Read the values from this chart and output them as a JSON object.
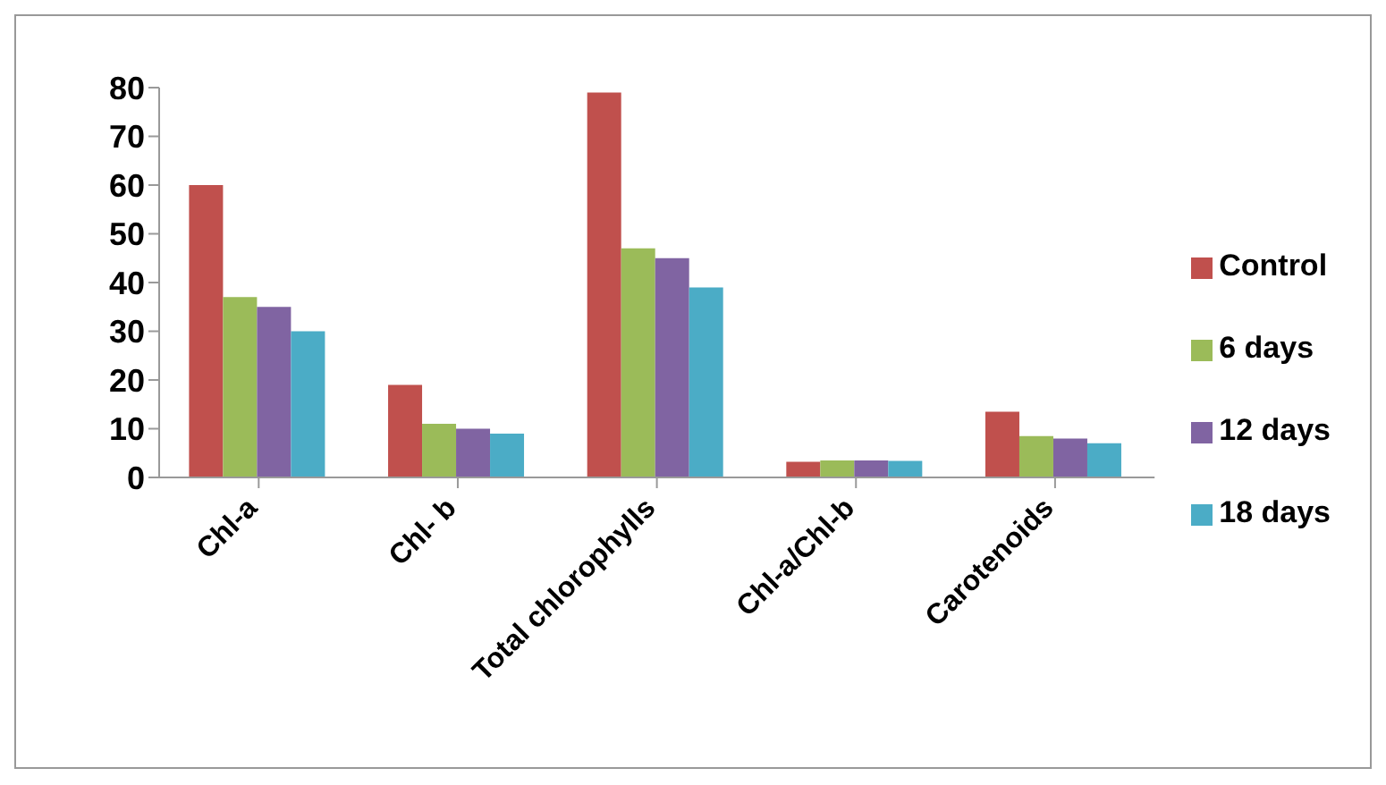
{
  "chart_data": {
    "type": "bar",
    "categories": [
      "Chl-a",
      "Chl- b",
      "Total chlorophylls",
      "Chl-a/Chl-b",
      "Carotenoids"
    ],
    "series": [
      {
        "name": "Control",
        "color": "#c0504d",
        "values": [
          60,
          19,
          79,
          3.2,
          13.5
        ]
      },
      {
        "name": "6 days",
        "color": "#9bbb59",
        "values": [
          37,
          11,
          47,
          3.5,
          8.5
        ]
      },
      {
        "name": "12 days",
        "color": "#8064a2",
        "values": [
          35,
          10,
          45,
          3.5,
          8
        ]
      },
      {
        "name": "18 days",
        "color": "#4bacc6",
        "values": [
          30,
          9,
          39,
          3.4,
          7
        ]
      }
    ],
    "ylim": [
      0,
      80
    ],
    "yticks": [
      0,
      10,
      20,
      30,
      40,
      50,
      60,
      70,
      80
    ],
    "grid": false,
    "legend": "right"
  }
}
